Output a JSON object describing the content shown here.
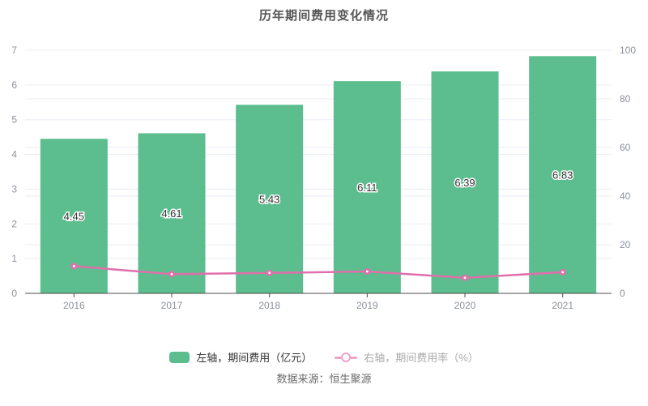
{
  "title": "历年期间费用变化情况",
  "source": "数据来源：恒生聚源",
  "legend": [
    {
      "label": "左轴，期间费用（亿元）",
      "series": "bar"
    },
    {
      "label": "右轴，期间费用率（%）",
      "series": "line"
    }
  ],
  "colors": {
    "bar": "#5cbe8e",
    "line": "#e16fac",
    "marker_fill": "#e16fac",
    "marker_center": "#ffffff",
    "legend_line_icon": "#f0a2cb",
    "grid": "#e9edf5",
    "axis_line": "#4c4c4c",
    "axis_label": "#8c919b",
    "bar_label": "#333333",
    "bar_label_outline": "#ffffff"
  },
  "chart_data": {
    "type": "bar",
    "combo": "bar+line",
    "title": "历年期间费用变化情况",
    "categories": [
      "2016",
      "2017",
      "2018",
      "2019",
      "2020",
      "2021"
    ],
    "series": [
      {
        "name": "左轴，期间费用（亿元）",
        "type": "bar",
        "axis": "left",
        "values": [
          4.45,
          4.61,
          5.43,
          6.11,
          6.39,
          6.83
        ],
        "data_labels": [
          "4.45",
          "4.61",
          "5.43",
          "6.11",
          "6.39",
          "6.83"
        ]
      },
      {
        "name": "右轴，期间费用率（%）",
        "type": "line",
        "axis": "right",
        "values": [
          11.2,
          7.9,
          8.4,
          9.0,
          6.4,
          8.7
        ]
      }
    ],
    "left_axis": {
      "min": 0,
      "max": 7,
      "ticks": [
        0,
        1,
        2,
        3,
        4,
        5,
        6,
        7
      ]
    },
    "right_axis": {
      "min": 0,
      "max": 100,
      "ticks": [
        0,
        20,
        40,
        60,
        80,
        100
      ]
    },
    "grid": "on",
    "legend_position": "bottom"
  }
}
